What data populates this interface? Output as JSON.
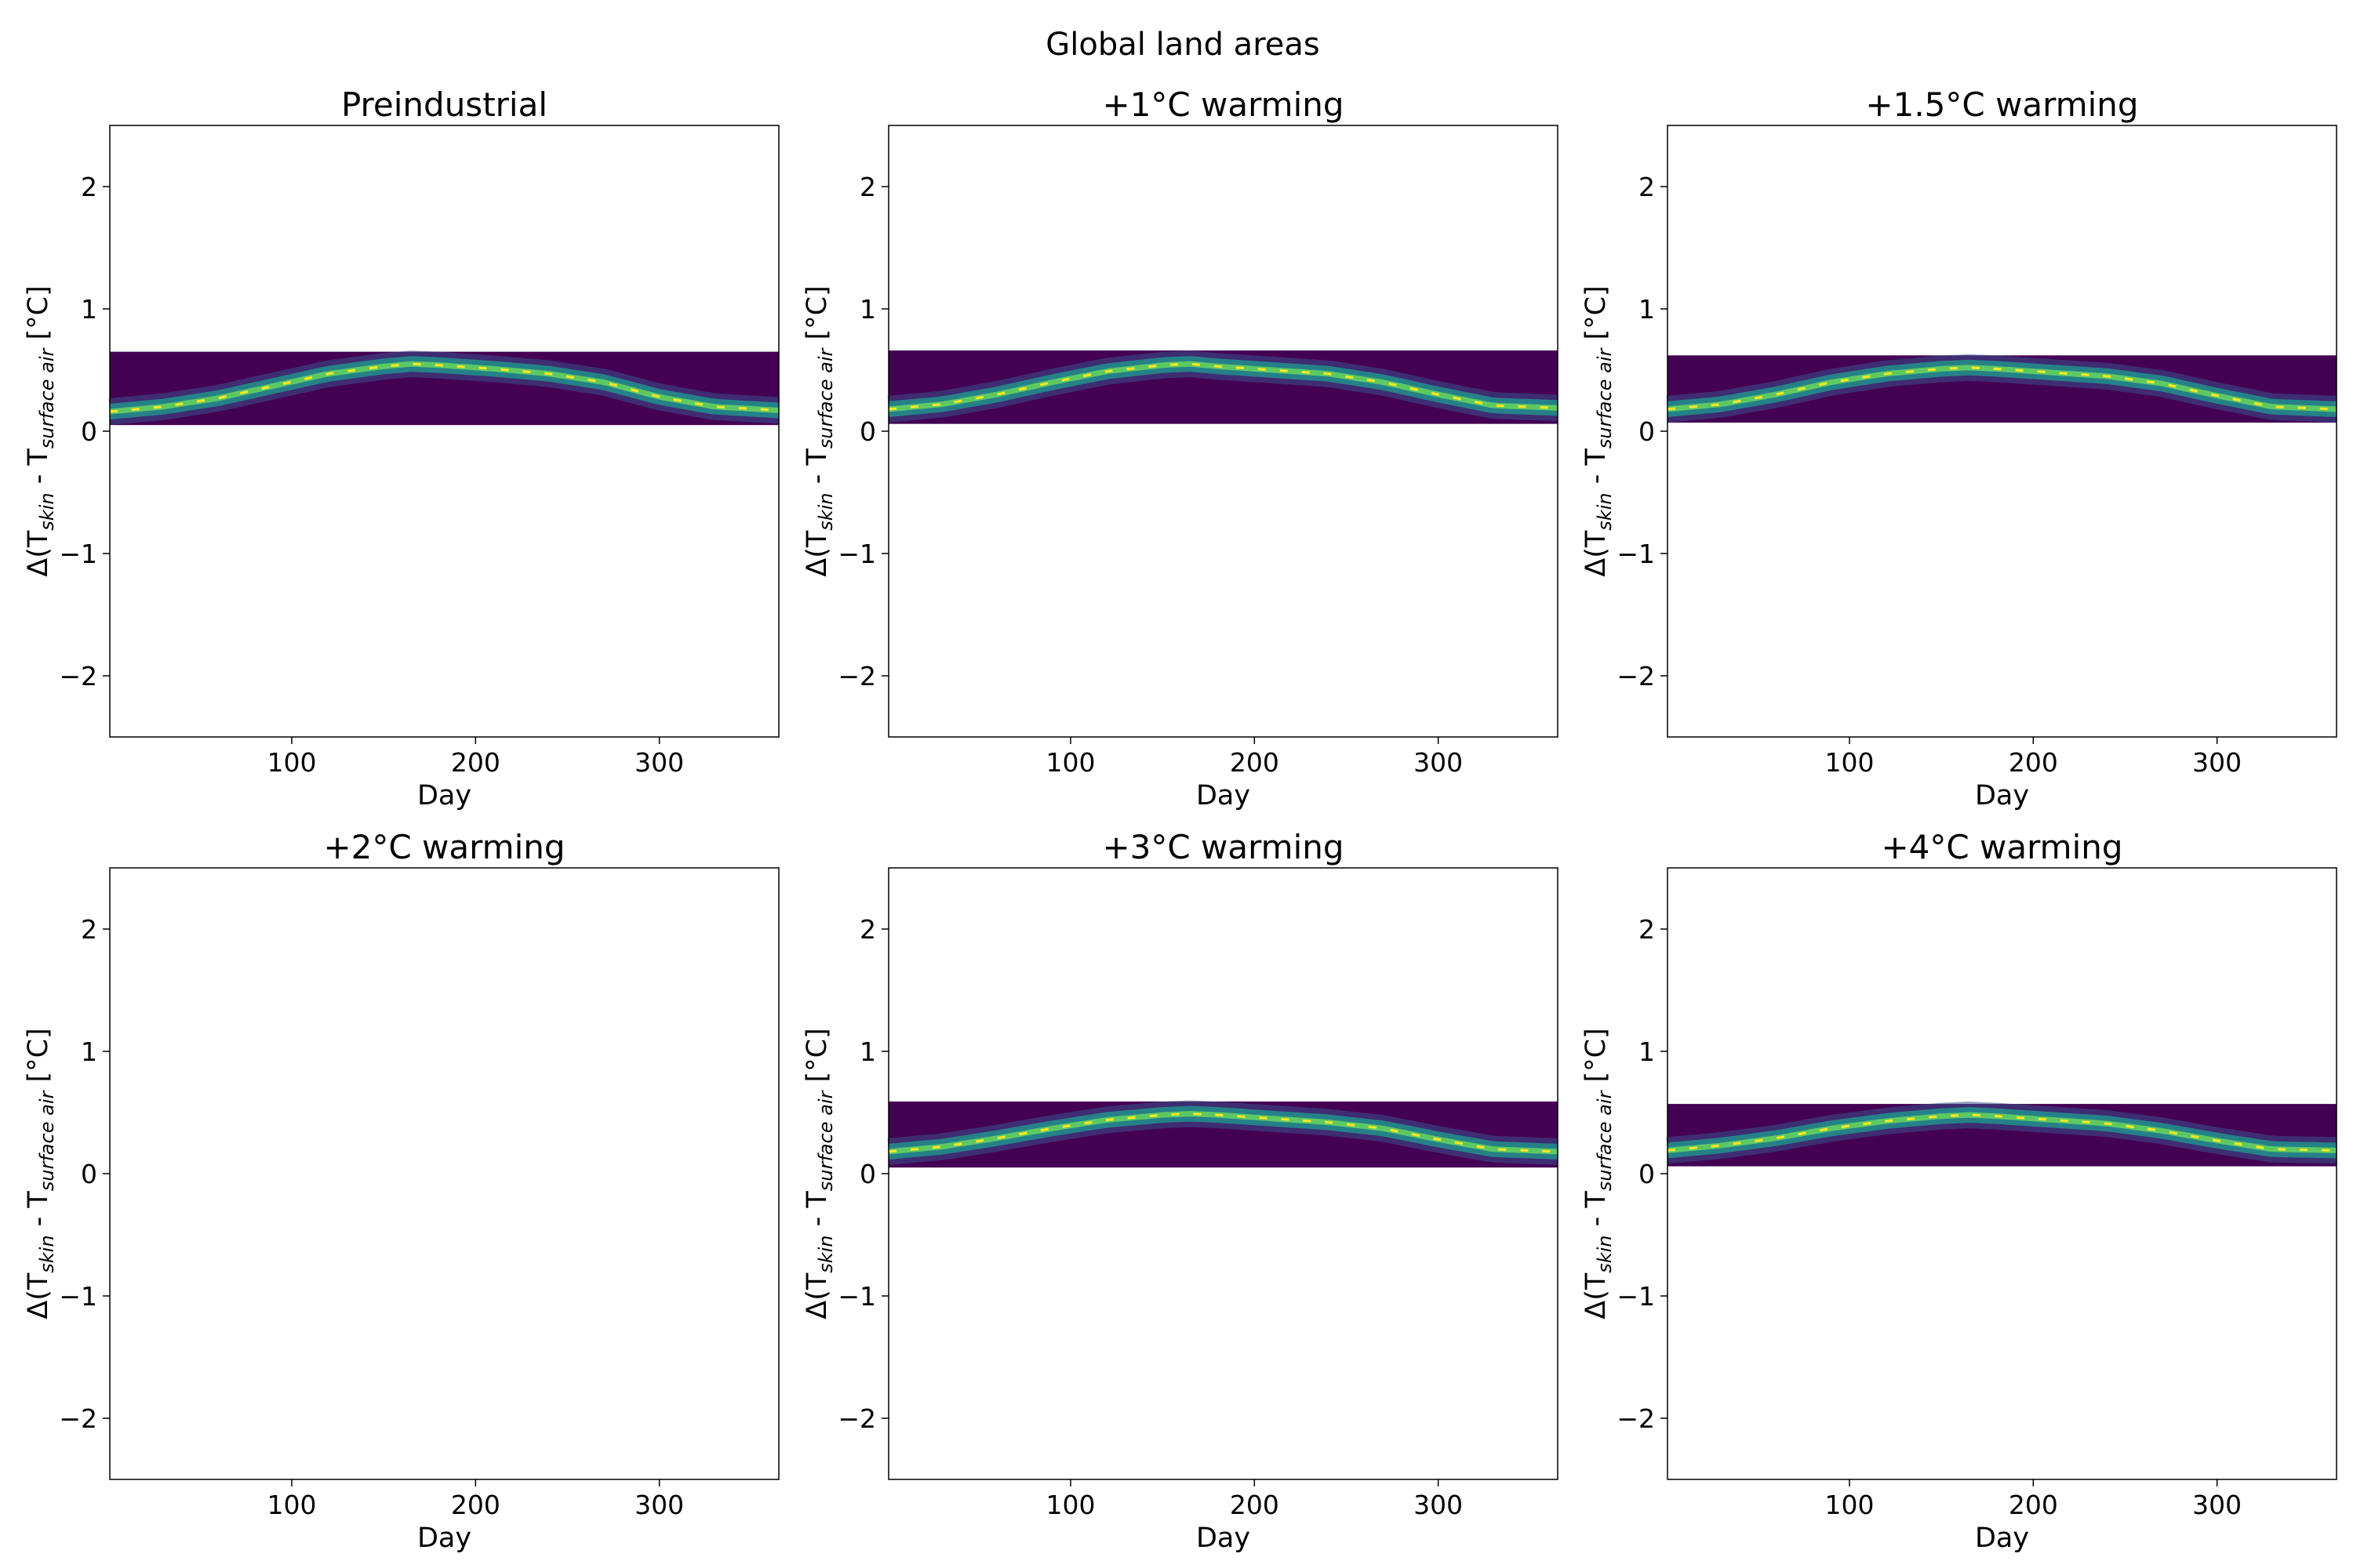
{
  "figure": {
    "title": "Global land areas"
  },
  "chart_data": [
    {
      "type": "heatmap",
      "title": "Preindustrial",
      "xlabel": "Day",
      "ylabel": {
        "prefix": "Δ(T",
        "sub1": "skin",
        "mid": " - T",
        "sub2": "surface air",
        "suffix": " [°C]"
      },
      "xlim": [
        1,
        365
      ],
      "ylim": [
        -2.5,
        2.5
      ],
      "xticks": [
        100,
        200,
        300
      ],
      "yticks": [
        -2,
        -1,
        0,
        1,
        2
      ],
      "colormap": "viridis",
      "background": "#440154",
      "has_data": true,
      "band": {
        "y_bottom": 0.05,
        "y_top": 0.65
      },
      "curve": {
        "x": [
          1,
          30,
          60,
          90,
          120,
          150,
          165,
          180,
          210,
          240,
          270,
          300,
          330,
          365
        ],
        "y": [
          0.16,
          0.2,
          0.27,
          0.37,
          0.47,
          0.53,
          0.55,
          0.54,
          0.51,
          0.47,
          0.4,
          0.28,
          0.2,
          0.17
        ]
      }
    },
    {
      "type": "heatmap",
      "title": "+1°C warming",
      "xlabel": "Day",
      "ylabel": {
        "prefix": "Δ(T",
        "sub1": "skin",
        "mid": " - T",
        "sub2": "surface air",
        "suffix": " [°C]"
      },
      "xlim": [
        1,
        365
      ],
      "ylim": [
        -2.5,
        2.5
      ],
      "xticks": [
        100,
        200,
        300
      ],
      "yticks": [
        -2,
        -1,
        0,
        1,
        2
      ],
      "colormap": "viridis",
      "background": "#440154",
      "has_data": true,
      "band": {
        "y_bottom": 0.06,
        "y_top": 0.66
      },
      "curve": {
        "x": [
          1,
          30,
          60,
          90,
          120,
          150,
          165,
          180,
          210,
          240,
          270,
          300,
          330,
          365
        ],
        "y": [
          0.18,
          0.22,
          0.3,
          0.4,
          0.49,
          0.54,
          0.55,
          0.53,
          0.5,
          0.47,
          0.4,
          0.3,
          0.21,
          0.19
        ]
      }
    },
    {
      "type": "heatmap",
      "title": "+1.5°C warming",
      "xlabel": "Day",
      "ylabel": {
        "prefix": "Δ(T",
        "sub1": "skin",
        "mid": " - T",
        "sub2": "surface air",
        "suffix": " [°C]"
      },
      "xlim": [
        1,
        365
      ],
      "ylim": [
        -2.5,
        2.5
      ],
      "xticks": [
        100,
        200,
        300
      ],
      "yticks": [
        -2,
        -1,
        0,
        1,
        2
      ],
      "colormap": "viridis",
      "background": "#440154",
      "has_data": true,
      "band": {
        "y_bottom": 0.07,
        "y_top": 0.62
      },
      "curve": {
        "x": [
          1,
          30,
          60,
          90,
          120,
          150,
          165,
          180,
          210,
          240,
          270,
          300,
          330,
          365
        ],
        "y": [
          0.18,
          0.22,
          0.3,
          0.4,
          0.47,
          0.51,
          0.52,
          0.51,
          0.48,
          0.45,
          0.39,
          0.29,
          0.2,
          0.18
        ]
      }
    },
    {
      "type": "heatmap",
      "title": "+2°C warming",
      "xlabel": "Day",
      "ylabel": {
        "prefix": "Δ(T",
        "sub1": "skin",
        "mid": " - T",
        "sub2": "surface air",
        "suffix": " [°C]"
      },
      "xlim": [
        1,
        365
      ],
      "ylim": [
        -2.5,
        2.5
      ],
      "xticks": [
        100,
        200,
        300
      ],
      "yticks": [
        -2,
        -1,
        0,
        1,
        2
      ],
      "colormap": "viridis",
      "background": "#440154",
      "has_data": false
    },
    {
      "type": "heatmap",
      "title": "+3°C warming",
      "xlabel": "Day",
      "ylabel": {
        "prefix": "Δ(T",
        "sub1": "skin",
        "mid": " - T",
        "sub2": "surface air",
        "suffix": " [°C]"
      },
      "xlim": [
        1,
        365
      ],
      "ylim": [
        -2.5,
        2.5
      ],
      "xticks": [
        100,
        200,
        300
      ],
      "yticks": [
        -2,
        -1,
        0,
        1,
        2
      ],
      "colormap": "viridis",
      "background": "#440154",
      "has_data": true,
      "band": {
        "y_bottom": 0.05,
        "y_top": 0.59
      },
      "curve": {
        "x": [
          1,
          30,
          60,
          90,
          120,
          150,
          165,
          180,
          210,
          240,
          270,
          300,
          330,
          365
        ],
        "y": [
          0.18,
          0.22,
          0.29,
          0.37,
          0.44,
          0.48,
          0.49,
          0.48,
          0.45,
          0.42,
          0.37,
          0.28,
          0.2,
          0.18
        ]
      }
    },
    {
      "type": "heatmap",
      "title": "+4°C warming",
      "xlabel": "Day",
      "ylabel": {
        "prefix": "Δ(T",
        "sub1": "skin",
        "mid": " - T",
        "sub2": "surface air",
        "suffix": " [°C]"
      },
      "xlim": [
        1,
        365
      ],
      "ylim": [
        -2.5,
        2.5
      ],
      "xticks": [
        100,
        200,
        300
      ],
      "yticks": [
        -2,
        -1,
        0,
        1,
        2
      ],
      "colormap": "viridis",
      "background": "#440154",
      "has_data": true,
      "band": {
        "y_bottom": 0.06,
        "y_top": 0.57
      },
      "curve": {
        "x": [
          1,
          30,
          60,
          90,
          120,
          150,
          165,
          180,
          210,
          240,
          270,
          300,
          330,
          365
        ],
        "y": [
          0.19,
          0.23,
          0.29,
          0.37,
          0.43,
          0.47,
          0.48,
          0.47,
          0.44,
          0.41,
          0.35,
          0.27,
          0.2,
          0.19
        ]
      }
    }
  ]
}
